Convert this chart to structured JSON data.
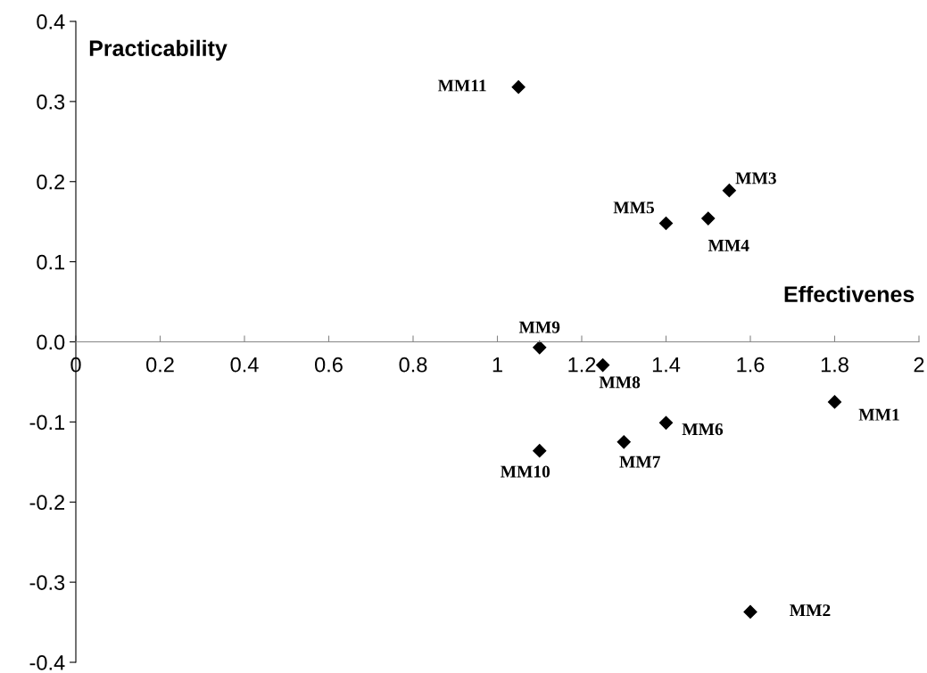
{
  "chart_data": {
    "type": "scatter",
    "xlabel": "Effectivenes",
    "ylabel": "Practicability",
    "x": [
      1.8,
      1.6,
      1.55,
      1.5,
      1.4,
      1.4,
      1.3,
      1.25,
      1.1,
      1.1,
      1.05
    ],
    "values": [
      -0.075,
      -0.337,
      0.189,
      0.154,
      0.148,
      -0.101,
      -0.125,
      -0.029,
      -0.007,
      -0.136,
      0.318
    ],
    "color": "#000000",
    "marker": "diamond",
    "grid": false,
    "legend": false,
    "xlim": [
      0,
      2
    ],
    "xticks": [
      0,
      0.2,
      0.4,
      0.6,
      0.8,
      1,
      1.2,
      1.4,
      1.6,
      1.8,
      2
    ],
    "ylim": [
      -0.4,
      0.4
    ],
    "yticks": [
      {
        "value": -0.4,
        "label": "-0.4"
      },
      {
        "value": -0.3,
        "label": "-0.3"
      },
      {
        "value": -0.2,
        "label": "-0.2"
      },
      {
        "value": -0.1,
        "label": "-0.1"
      },
      {
        "value": 0,
        "label": "0.0"
      },
      {
        "value": 0.1,
        "label": "0.1"
      },
      {
        "value": 0.2,
        "label": "0.2"
      },
      {
        "value": 0.3,
        "label": "0.3"
      },
      {
        "value": 0.4,
        "label": "0.4"
      }
    ],
    "annotations": [
      {
        "text": "MM1",
        "x": 1.8,
        "y": -0.075
      },
      {
        "text": "MM2",
        "x": 1.6,
        "y": -0.337
      },
      {
        "text": "MM3",
        "x": 1.55,
        "y": 0.189
      },
      {
        "text": "MM4",
        "x": 1.5,
        "y": 0.154
      },
      {
        "text": "MM5",
        "x": 1.4,
        "y": 0.148
      },
      {
        "text": "MM6",
        "x": 1.4,
        "y": -0.101
      },
      {
        "text": "MM7",
        "x": 1.3,
        "y": -0.125
      },
      {
        "text": "MM8",
        "x": 1.25,
        "y": -0.029
      },
      {
        "text": "MM9",
        "x": 1.1,
        "y": -0.007
      },
      {
        "text": "MM10",
        "x": 1.1,
        "y": -0.136
      },
      {
        "text": "MM11",
        "x": 1.05,
        "y": 0.318
      }
    ]
  }
}
